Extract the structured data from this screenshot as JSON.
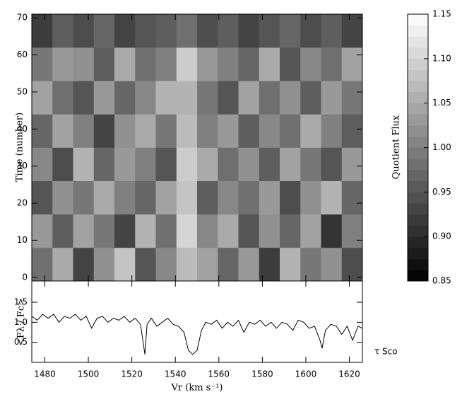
{
  "chart_data": [
    {
      "type": "heatmap",
      "ylabel": "Time (number)",
      "x_edges": [
        1474,
        1483.5,
        1493,
        1502.5,
        1512,
        1521.5,
        1531,
        1540.5,
        1550,
        1559.5,
        1569,
        1578.5,
        1588,
        1597.5,
        1607,
        1616.5,
        1626
      ],
      "y_edges": [
        -1,
        8,
        17,
        26,
        35,
        44,
        53,
        62,
        71
      ],
      "z": [
        [
          0.98,
          1.05,
          0.93,
          1.02,
          1.08,
          0.95,
          1.01,
          1.07,
          1.04,
          0.97,
          1.03,
          0.92,
          1.06,
          0.99,
          1.02,
          0.94
        ],
        [
          1.03,
          0.96,
          1.04,
          0.99,
          0.93,
          1.06,
          0.98,
          1.1,
          1.01,
          1.05,
          0.95,
          1.02,
          0.97,
          1.04,
          0.91,
          1.0
        ],
        [
          0.95,
          1.02,
          0.99,
          1.05,
          1.0,
          0.97,
          1.04,
          1.08,
          0.96,
          1.01,
          0.98,
          1.03,
          0.94,
          1.02,
          1.06,
          0.97
        ],
        [
          1.01,
          0.94,
          1.06,
          0.97,
          1.03,
          1.0,
          0.95,
          1.09,
          1.05,
          0.98,
          1.02,
          0.96,
          1.04,
          0.99,
          0.95,
          1.03
        ],
        [
          0.97,
          1.04,
          1.0,
          0.93,
          1.02,
          1.05,
          0.99,
          1.07,
          1.0,
          1.03,
          0.96,
          1.01,
          0.98,
          1.05,
          1.0,
          0.96
        ],
        [
          1.04,
          0.98,
          0.95,
          1.03,
          0.97,
          1.01,
          1.06,
          1.06,
          0.99,
          0.95,
          1.04,
          0.98,
          1.02,
          0.96,
          1.03,
          0.99
        ],
        [
          0.99,
          1.03,
          1.02,
          0.96,
          1.05,
          0.98,
          1.0,
          1.09,
          1.03,
          1.0,
          0.97,
          1.05,
          0.95,
          1.01,
          0.98,
          1.04
        ],
        [
          0.92,
          0.96,
          0.94,
          0.97,
          0.93,
          0.95,
          0.96,
          0.98,
          0.94,
          0.96,
          0.93,
          0.95,
          0.97,
          0.94,
          0.96,
          0.93
        ]
      ],
      "xlim": [
        1474,
        1626
      ],
      "ylim": [
        -1,
        71
      ],
      "yticks": [
        0,
        10,
        20,
        30,
        40,
        50,
        60,
        70
      ],
      "colorbar": {
        "label": "Quotient Flux",
        "lim": [
          0.85,
          1.15
        ],
        "ticks": [
          0.85,
          {
            "value": 0.9,
            "label": "0.90"
          },
          0.95,
          {
            "value": 1.0,
            "label": "1.00"
          },
          1.05,
          {
            "value": 1.1,
            "label": "1.10"
          },
          1.15
        ]
      }
    },
    {
      "type": "line",
      "ylabel": "<Fλ / Fc>",
      "xlabel": "Vr (km s⁻¹)",
      "annotation": "τ Sco",
      "color": "#000000",
      "x": [
        1474,
        1476.5,
        1479,
        1481.5,
        1484,
        1486.5,
        1489,
        1491.5,
        1494,
        1496.5,
        1499,
        1501.5,
        1504,
        1506.5,
        1509,
        1511.5,
        1514,
        1516.5,
        1519,
        1521.5,
        1524,
        1526,
        1527,
        1529,
        1531.5,
        1534,
        1536.5,
        1539,
        1541.5,
        1544,
        1546,
        1548,
        1550,
        1552,
        1554,
        1556.5,
        1559,
        1561.5,
        1564,
        1566.5,
        1569,
        1571.5,
        1574,
        1576.5,
        1579,
        1581.5,
        1584,
        1586.5,
        1589,
        1591.5,
        1594,
        1596.5,
        1599,
        1601.5,
        1604,
        1606.5,
        1607.5,
        1609,
        1611.5,
        1614,
        1616.5,
        1619,
        1621.5,
        1624,
        1626
      ],
      "values": [
        1.15,
        1.05,
        1.2,
        1.1,
        1.2,
        1.0,
        1.15,
        1.1,
        1.2,
        1.05,
        1.15,
        0.85,
        1.1,
        1.15,
        1.0,
        1.1,
        1.05,
        1.15,
        1.0,
        1.1,
        0.95,
        0.2,
        0.95,
        1.1,
        0.9,
        1.0,
        1.1,
        0.95,
        0.9,
        0.75,
        0.3,
        0.2,
        0.3,
        0.8,
        1.0,
        0.95,
        1.05,
        0.85,
        1.0,
        0.9,
        1.05,
        0.75,
        1.0,
        0.95,
        1.05,
        0.9,
        1.0,
        0.85,
        1.0,
        0.95,
        0.8,
        1.05,
        1.0,
        0.85,
        0.9,
        0.55,
        0.35,
        0.8,
        0.95,
        0.9,
        0.7,
        0.9,
        0.55,
        0.9,
        0.85
      ],
      "xlim": [
        1474,
        1626
      ],
      "ylim": [
        0,
        2.03
      ],
      "xticks": [
        1480,
        1500,
        1520,
        1540,
        1560,
        1580,
        1600,
        1620
      ],
      "yticks": [
        0.5,
        {
          "value": 1.0,
          "label": "1.0"
        },
        1.5
      ]
    }
  ]
}
